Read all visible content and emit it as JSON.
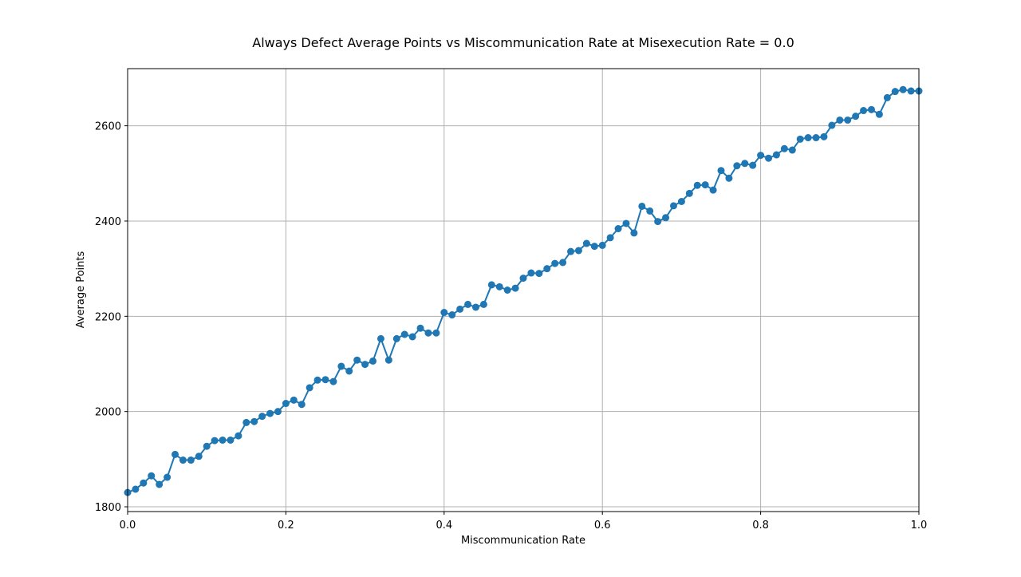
{
  "chart_data": {
    "type": "line",
    "title": "Always Defect Average Points vs Miscommunication Rate at Misexecution Rate = 0.0",
    "xlabel": "Miscommunication Rate",
    "ylabel": "Average Points",
    "xlim": [
      0.0,
      1.0
    ],
    "ylim": [
      1790,
      2720
    ],
    "xticks": [
      0.0,
      0.2,
      0.4,
      0.6,
      0.8,
      1.0
    ],
    "xtick_labels": [
      "0.0",
      "0.2",
      "0.4",
      "0.6",
      "0.8",
      "1.0"
    ],
    "yticks": [
      1800,
      2000,
      2200,
      2400,
      2600
    ],
    "ytick_labels": [
      "1800",
      "2000",
      "2200",
      "2400",
      "2600"
    ],
    "grid": true,
    "marker": "circle",
    "color": "#1f77b4",
    "series": [
      {
        "x": [
          0.0,
          0.01,
          0.02,
          0.03,
          0.04,
          0.05,
          0.06,
          0.07,
          0.08,
          0.09,
          0.1,
          0.11,
          0.12,
          0.13,
          0.14,
          0.15,
          0.16,
          0.17,
          0.18,
          0.19,
          0.2,
          0.21,
          0.22,
          0.23,
          0.24,
          0.25,
          0.26,
          0.27,
          0.28,
          0.29,
          0.3,
          0.31,
          0.32,
          0.33,
          0.34,
          0.35,
          0.36,
          0.37,
          0.38,
          0.39,
          0.4,
          0.41,
          0.42,
          0.43,
          0.44,
          0.45,
          0.46,
          0.47,
          0.48,
          0.49,
          0.5,
          0.51,
          0.52,
          0.53,
          0.54,
          0.55,
          0.56,
          0.57,
          0.58,
          0.59,
          0.6,
          0.61,
          0.62,
          0.63,
          0.64,
          0.65,
          0.66,
          0.67,
          0.68,
          0.69,
          0.7,
          0.71,
          0.72,
          0.73,
          0.74,
          0.75,
          0.76,
          0.77,
          0.78,
          0.79,
          0.8,
          0.81,
          0.82,
          0.83,
          0.84,
          0.85,
          0.86,
          0.87,
          0.88,
          0.89,
          0.9,
          0.91,
          0.92,
          0.93,
          0.94,
          0.95,
          0.96,
          0.97,
          0.98,
          0.99,
          1.0
        ],
        "y": [
          1830,
          1837,
          1850,
          1865,
          1847,
          1862,
          1910,
          1898,
          1898,
          1906,
          1927,
          1939,
          1940,
          1940,
          1949,
          1977,
          1979,
          1990,
          1996,
          2000,
          2017,
          2024,
          2015,
          2050,
          2066,
          2067,
          2063,
          2095,
          2085,
          2108,
          2099,
          2106,
          2153,
          2108,
          2153,
          2162,
          2157,
          2175,
          2165,
          2165,
          2208,
          2203,
          2215,
          2225,
          2219,
          2225,
          2266,
          2262,
          2255,
          2259,
          2280,
          2291,
          2290,
          2300,
          2311,
          2313,
          2336,
          2338,
          2353,
          2347,
          2349,
          2365,
          2384,
          2395,
          2375,
          2431,
          2421,
          2399,
          2407,
          2432,
          2441,
          2458,
          2475,
          2476,
          2465,
          2506,
          2490,
          2516,
          2521,
          2517,
          2538,
          2532,
          2539,
          2552,
          2549,
          2572,
          2575,
          2575,
          2577,
          2601,
          2612,
          2612,
          2620,
          2632,
          2634,
          2624,
          2659,
          2672,
          2676,
          2673,
          2673
        ]
      }
    ]
  }
}
